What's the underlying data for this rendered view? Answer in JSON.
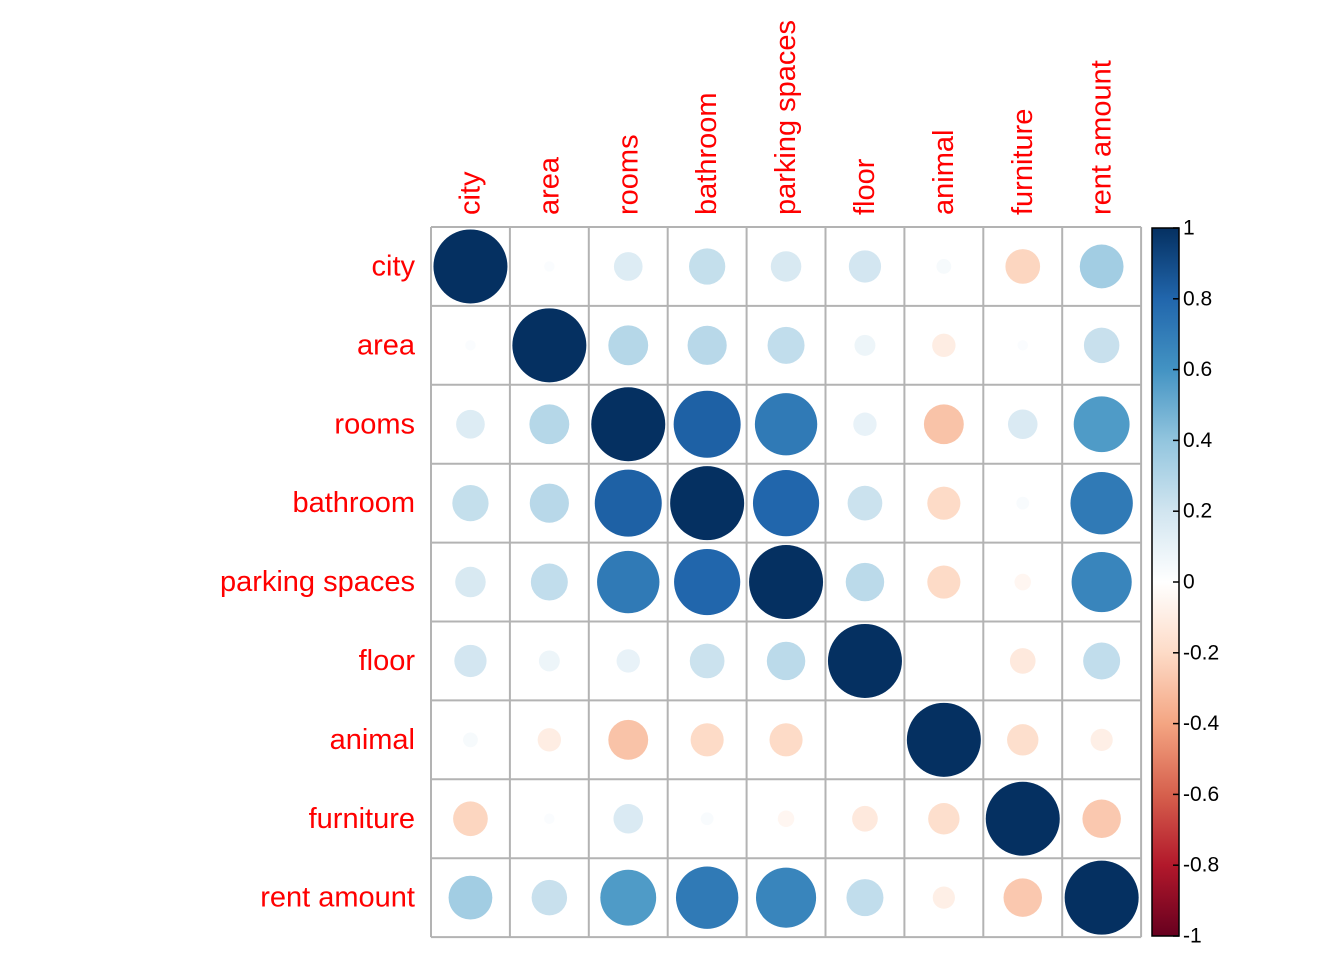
{
  "chart_data": {
    "type": "heatmap",
    "style": "correlation-circles",
    "variables": [
      "city",
      "area",
      "rooms",
      "bathroom",
      "parking spaces",
      "floor",
      "animal",
      "furniture",
      "rent amount"
    ],
    "matrix": [
      [
        1.0,
        0.02,
        0.15,
        0.24,
        0.17,
        0.19,
        0.04,
        -0.22,
        0.35
      ],
      [
        0.02,
        1.0,
        0.29,
        0.28,
        0.25,
        0.08,
        -0.1,
        0.02,
        0.23
      ],
      [
        0.15,
        0.29,
        1.0,
        0.82,
        0.71,
        0.1,
        -0.29,
        0.16,
        0.57
      ],
      [
        0.24,
        0.28,
        0.82,
        1.0,
        0.8,
        0.22,
        -0.2,
        0.03,
        0.71
      ],
      [
        0.17,
        0.25,
        0.71,
        0.8,
        1.0,
        0.27,
        -0.2,
        -0.05,
        0.66
      ],
      [
        0.19,
        0.08,
        0.1,
        0.22,
        0.27,
        1.0,
        0.0,
        -0.12,
        0.25
      ],
      [
        0.04,
        -0.1,
        -0.29,
        -0.2,
        -0.2,
        0.0,
        1.0,
        -0.18,
        -0.09
      ],
      [
        -0.22,
        0.02,
        0.16,
        0.03,
        -0.05,
        -0.12,
        -0.18,
        1.0,
        -0.27
      ],
      [
        0.35,
        0.23,
        0.57,
        0.71,
        0.66,
        0.25,
        -0.09,
        -0.27,
        1.0
      ]
    ],
    "colorbar": {
      "ticks": [
        "1",
        "0.8",
        "0.6",
        "0.4",
        "0.2",
        "0",
        "-0.2",
        "-0.4",
        "-0.6",
        "-0.8",
        "-1"
      ],
      "range": [
        -1,
        1
      ]
    },
    "colors": {
      "palette": [
        "#67001f",
        "#b2182b",
        "#d6604d",
        "#f4a582",
        "#fddbc7",
        "#ffffff",
        "#d1e5f0",
        "#92c5de",
        "#4393c3",
        "#2166ac",
        "#053061"
      ],
      "label": "#ff0000",
      "grid": "#b3b3b3"
    }
  }
}
